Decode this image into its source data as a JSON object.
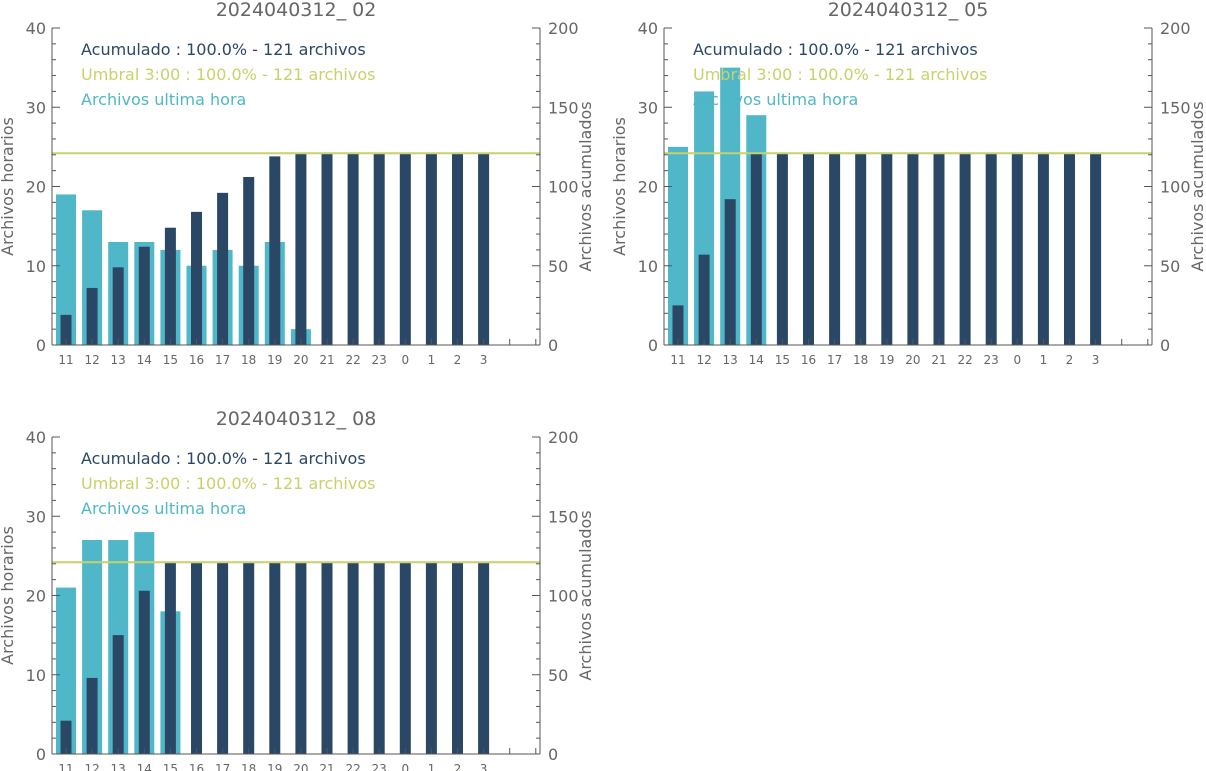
{
  "colors": {
    "accumulated": "#2b4766",
    "hourly": "#4fb7c7",
    "threshold": "#c9d16a",
    "axis": "#555555",
    "text": "#666666"
  },
  "chart_data": [
    {
      "type": "bar",
      "title": "2024040312_ 02",
      "ylabel": "Archivos horarios",
      "ylabel_right": "Archivos acumulados",
      "ylim": [
        0,
        40
      ],
      "ylim_right": [
        0,
        200
      ],
      "yticks": [
        "0",
        "10",
        "20",
        "30",
        "40"
      ],
      "yticks_right": [
        "0",
        "50",
        "100",
        "150",
        "200"
      ],
      "categories": [
        "11",
        "12",
        "13",
        "14",
        "15",
        "16",
        "17",
        "18",
        "19",
        "20",
        "21",
        "22",
        "23",
        "0",
        "1",
        "2",
        "3"
      ],
      "legend": {
        "accumulated": "Acumulado : 100.0% - 121 archivos",
        "threshold": "Umbral 3:00 : 100.0% - 121 archivos",
        "hourly": "Archivos ultima hora"
      },
      "threshold_value": 121,
      "series": [
        {
          "key": "hourly",
          "name": "Archivos ultima hora",
          "axis": "left",
          "values": [
            19,
            17,
            13,
            13,
            12,
            10,
            12,
            10,
            13,
            2,
            null,
            null,
            null,
            null,
            null,
            null,
            null
          ]
        },
        {
          "key": "accumulated",
          "name": "Acumulado",
          "axis": "right",
          "values": [
            19,
            36,
            49,
            62,
            74,
            84,
            96,
            106,
            119,
            121,
            121,
            121,
            121,
            121,
            121,
            121,
            121
          ]
        }
      ]
    },
    {
      "type": "bar",
      "title": "2024040312_ 05",
      "ylabel": "Archivos horarios",
      "ylabel_right": "Archivos acumulados",
      "ylim": [
        0,
        40
      ],
      "ylim_right": [
        0,
        200
      ],
      "yticks": [
        "0",
        "10",
        "20",
        "30",
        "40"
      ],
      "yticks_right": [
        "0",
        "50",
        "100",
        "150",
        "200"
      ],
      "categories": [
        "11",
        "12",
        "13",
        "14",
        "15",
        "16",
        "17",
        "18",
        "19",
        "20",
        "21",
        "22",
        "23",
        "0",
        "1",
        "2",
        "3"
      ],
      "legend": {
        "accumulated": "Acumulado : 100.0% - 121 archivos",
        "threshold": "Umbral 3:00 : 100.0% - 121 archivos",
        "hourly": "Archivos ultima hora"
      },
      "threshold_value": 121,
      "series": [
        {
          "key": "hourly",
          "name": "Archivos ultima hora",
          "axis": "left",
          "values": [
            25,
            32,
            35,
            29,
            null,
            null,
            null,
            null,
            null,
            null,
            null,
            null,
            null,
            null,
            null,
            null,
            null
          ]
        },
        {
          "key": "accumulated",
          "name": "Acumulado",
          "axis": "right",
          "values": [
            25,
            57,
            92,
            121,
            121,
            121,
            121,
            121,
            121,
            121,
            121,
            121,
            121,
            121,
            121,
            121,
            121
          ]
        }
      ]
    },
    {
      "type": "bar",
      "title": "2024040312_ 08",
      "ylabel": "Archivos horarios",
      "ylabel_right": "Archivos acumulados",
      "ylim": [
        0,
        40
      ],
      "ylim_right": [
        0,
        200
      ],
      "yticks": [
        "0",
        "10",
        "20",
        "30",
        "40"
      ],
      "yticks_right": [
        "0",
        "50",
        "100",
        "150",
        "200"
      ],
      "categories": [
        "11",
        "12",
        "13",
        "14",
        "15",
        "16",
        "17",
        "18",
        "19",
        "20",
        "21",
        "22",
        "23",
        "0",
        "1",
        "2",
        "3"
      ],
      "legend": {
        "accumulated": "Acumulado : 100.0% - 121 archivos",
        "threshold": "Umbral 3:00 : 100.0% - 121 archivos",
        "hourly": "Archivos ultima hora"
      },
      "threshold_value": 121,
      "series": [
        {
          "key": "hourly",
          "name": "Archivos ultima hora",
          "axis": "left",
          "values": [
            21,
            27,
            27,
            28,
            18,
            null,
            null,
            null,
            null,
            null,
            null,
            null,
            null,
            null,
            null,
            null,
            null
          ]
        },
        {
          "key": "accumulated",
          "name": "Acumulado",
          "axis": "right",
          "values": [
            21,
            48,
            75,
            103,
            121,
            121,
            121,
            121,
            121,
            121,
            121,
            121,
            121,
            121,
            121,
            121,
            121
          ]
        }
      ]
    }
  ]
}
